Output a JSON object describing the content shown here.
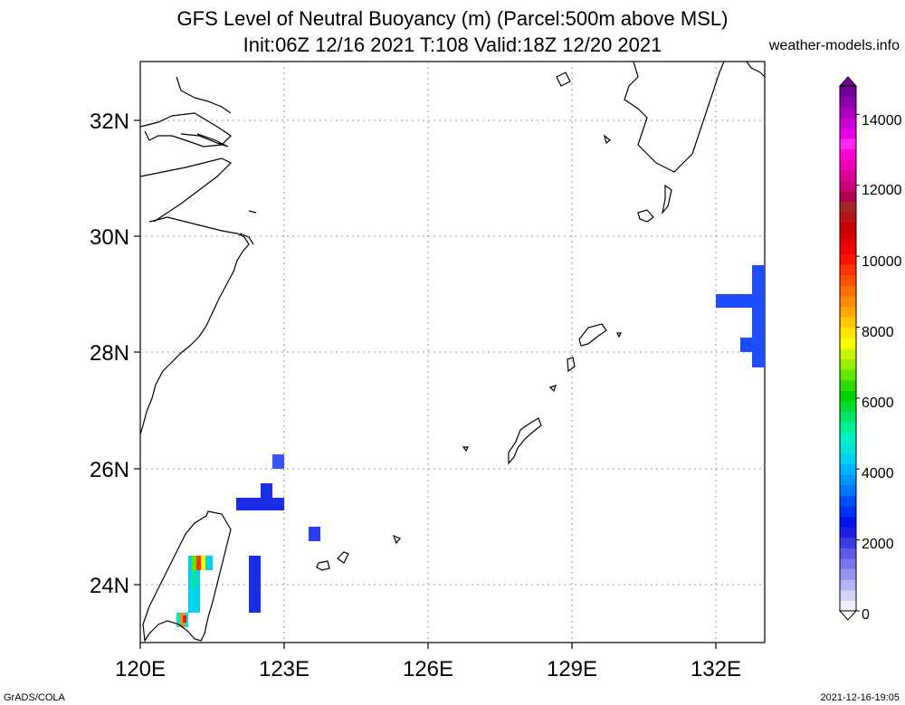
{
  "header": {
    "title_line1": "GFS Level of Neutral Buoyancy (m) (Parcel:500m above MSL)",
    "title_line2": "Init:06Z 12/16 2021 T:108 Valid:18Z 12/20 2021",
    "credit": "weather-models.info"
  },
  "footer": {
    "left": "GrADS/COLA",
    "right": "2021-12-16-19:05"
  },
  "map": {
    "lon_labels": [
      "120E",
      "123E",
      "126E",
      "129E",
      "132E"
    ],
    "lat_labels": [
      "32N",
      "30N",
      "28N",
      "26N",
      "24N"
    ],
    "coastline_color": "#000000",
    "grid": "dotted"
  },
  "colorbar": {
    "labels": [
      "14000",
      "12000",
      "10000",
      "8000",
      "6000",
      "4000",
      "2000",
      "0"
    ],
    "colors": [
      "#f0f0ff",
      "#d2d2fa",
      "#b4b4f5",
      "#9696f0",
      "#7878eb",
      "#5a5ae6",
      "#3c3ce1",
      "#1e1ee6",
      "#0014f0",
      "#0032f5",
      "#0050fa",
      "#0078ff",
      "#0096ff",
      "#00b4ff",
      "#00d2f0",
      "#00e6dc",
      "#00f0c8",
      "#00f096",
      "#00e664",
      "#00dc32",
      "#00d200",
      "#32dc00",
      "#64e600",
      "#96f000",
      "#c8f500",
      "#fafa00",
      "#ffe600",
      "#ffc800",
      "#ffaa00",
      "#ff8c00",
      "#ff6e00",
      "#ff5000",
      "#ff3200",
      "#ff1400",
      "#f00000",
      "#dc0000",
      "#c80000",
      "#b41414",
      "#a02828",
      "#b40050",
      "#c80078",
      "#dc0096",
      "#f000b4",
      "#ff00d2",
      "#ff28f0",
      "#e600e6",
      "#c800d2",
      "#aa00be",
      "#8c00aa",
      "#6e0096"
    ]
  }
}
